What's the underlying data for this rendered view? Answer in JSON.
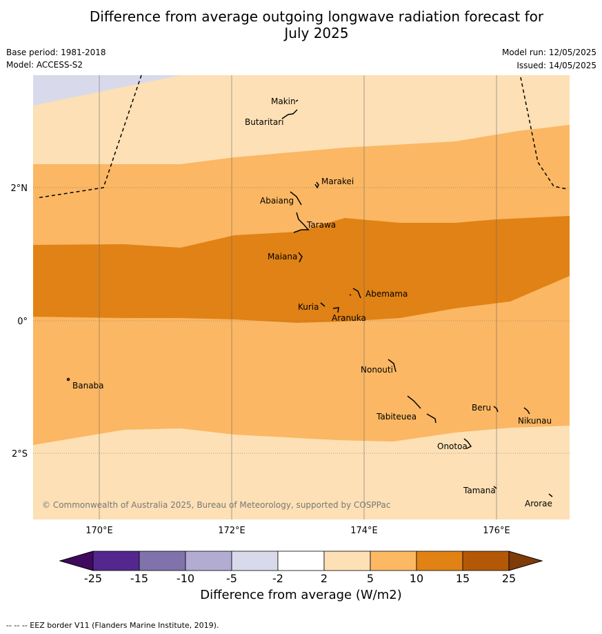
{
  "title_line1": "Difference from average outgoing longwave radiation forecast for",
  "title_line2": "July 2025",
  "base_period": "Base period: 1981-2018",
  "model": "Model: ACCESS-S2",
  "model_run": "Model run: 12/05/2025",
  "issued": "Issued: 14/05/2025",
  "copyright": "© Commonwealth of Australia 2025, Bureau of Meteorology, supported by COSPPac",
  "map": {
    "lon_labels": [
      "170°E",
      "172°E",
      "174°E",
      "176°E"
    ],
    "lat_labels": [
      "2°N",
      "0°",
      "2°S"
    ],
    "places": [
      "Makin",
      "Butaritari",
      "Marakei",
      "Abaiang",
      "Tarawa",
      "Maiana",
      "Abemama",
      "Kuria",
      "Aranuka",
      "Nonouti",
      "Banaba",
      "Tabiteuea",
      "Beru",
      "Nikunau",
      "Onotoa",
      "Tamana",
      "Arorae"
    ]
  },
  "colorbar": {
    "label": "Difference from average (W/m2)",
    "ticks": [
      "-25",
      "-15",
      "-10",
      "-5",
      "-2",
      "2",
      "5",
      "10",
      "15",
      "25"
    ],
    "colors": [
      "#3f0a5e",
      "#54278f",
      "#8073ac",
      "#b2abd2",
      "#d8daeb",
      "#ffffff",
      "#fee0b6",
      "#fdb863",
      "#e08214",
      "#b35806",
      "#7f3b08"
    ]
  },
  "eez_note": "--  --  -- EEZ border V11 (Flanders Marine Institute, 2019)."
}
